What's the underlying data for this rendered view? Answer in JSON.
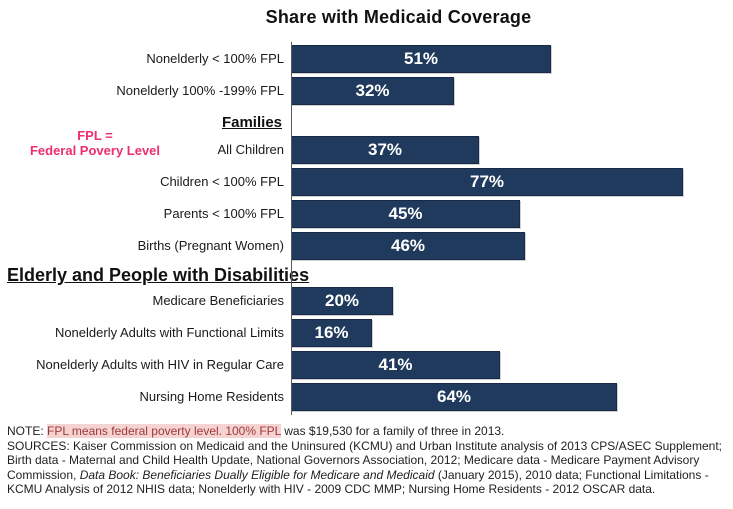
{
  "title": "Share with Medicaid Coverage",
  "fpl_callout": {
    "line1": "FPL =",
    "line2": "Federal Povery Level",
    "color": "#EE2E6E"
  },
  "chart_data": {
    "type": "bar",
    "orientation": "horizontal",
    "unit": "percent",
    "xlim": [
      0,
      87
    ],
    "bar_color": "#1F3A5C",
    "axis_color": "#595959",
    "value_label_color": "#FFFFFF",
    "legend": "none",
    "grid": false,
    "rows": [
      {
        "kind": "bar",
        "label": "Nonelderly < 100% FPL",
        "value": 51,
        "value_label": "51%"
      },
      {
        "kind": "bar",
        "label": "Nonelderly 100% -199% FPL",
        "value": 32,
        "value_label": "32%"
      },
      {
        "kind": "section",
        "style": "families",
        "label": "Families"
      },
      {
        "kind": "bar",
        "label": "All Children",
        "value": 37,
        "value_label": "37%"
      },
      {
        "kind": "bar",
        "label": "Children < 100% FPL",
        "value": 77,
        "value_label": "77%"
      },
      {
        "kind": "bar",
        "label": "Parents < 100% FPL",
        "value": 45,
        "value_label": "45%"
      },
      {
        "kind": "bar",
        "label": "Births (Pregnant Women)",
        "value": 46,
        "value_label": "46%"
      },
      {
        "kind": "section",
        "style": "elderly",
        "label": "Elderly and People with Disabilities"
      },
      {
        "kind": "bar",
        "label": "Medicare Beneficiaries",
        "value": 20,
        "value_label": "20%"
      },
      {
        "kind": "bar",
        "label": "Nonelderly Adults with Functional Limits",
        "value": 16,
        "value_label": "16%"
      },
      {
        "kind": "bar",
        "label": "Nonelderly Adults with HIV in Regular Care",
        "value": 41,
        "value_label": "41%"
      },
      {
        "kind": "bar",
        "label": "Nursing Home Residents",
        "value": 64,
        "value_label": "64%"
      }
    ]
  },
  "note": {
    "prefix": "NOTE: ",
    "highlighted": "FPL means federal poverty level. 100% FPL",
    "suffix": " was $19,530 for a family of three in 2013.",
    "highlight_bg": "#F6D3D3",
    "highlight_text": "#9C3A38"
  },
  "sources": {
    "part1": "SOURCES: Kaiser Commission on Medicaid and the Uninsured (KCMU) and Urban Institute analysis of 2013 CPS/ASEC Supplement; Birth data - Maternal and Child Health Update, National Governors Association, 2012; Medicare data - Medicare Payment Advisory Commission, ",
    "italic": "Data Book: Beneficiaries Dually Eligible for Medicare and Medicaid",
    "part2": " (January 2015), 2010 data; Functional Limitations - KCMU Analysis of 2012 NHIS data; Nonelderly with HIV - 2009 CDC MMP; Nursing Home Residents - 2012 OSCAR data."
  }
}
